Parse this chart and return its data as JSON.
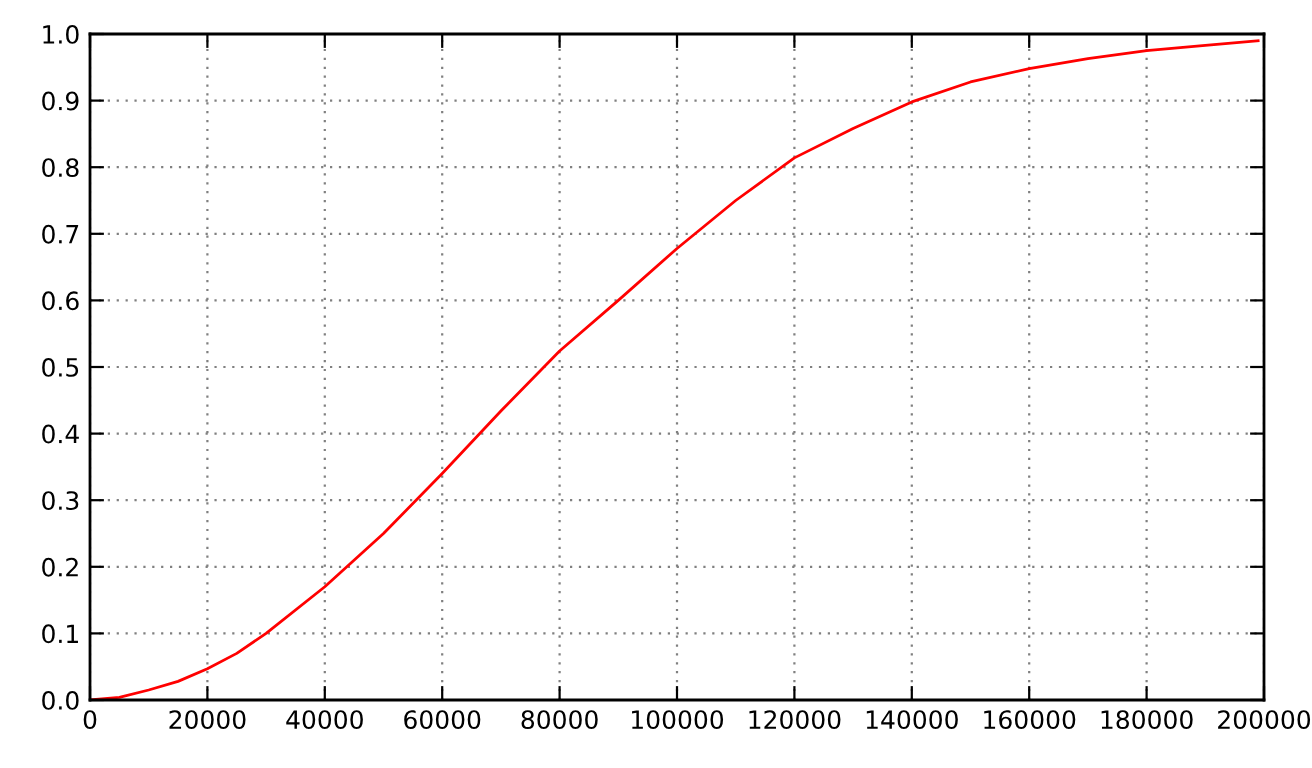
{
  "chart_data": {
    "type": "line",
    "x": [
      0,
      5000,
      10000,
      15000,
      20000,
      25000,
      30000,
      40000,
      50000,
      60000,
      70000,
      80000,
      90000,
      100000,
      110000,
      120000,
      130000,
      140000,
      150000,
      160000,
      170000,
      180000,
      190000,
      199000
    ],
    "series": [
      {
        "color": "#ff0000",
        "values": [
          0,
          0.004,
          0.015,
          0.028,
          0.047,
          0.07,
          0.1,
          0.17,
          0.25,
          0.34,
          0.434,
          0.524,
          0.6,
          0.678,
          0.75,
          0.814,
          0.858,
          0.898,
          0.928,
          0.948,
          0.963,
          0.975,
          0.983,
          0.99
        ]
      }
    ],
    "xlim": [
      0,
      200000
    ],
    "xticks": [
      0,
      20000,
      40000,
      60000,
      80000,
      100000,
      120000,
      140000,
      160000,
      180000,
      200000
    ],
    "ylim": [
      0,
      1.0
    ],
    "yticks": [
      {
        "value": 0,
        "label": "0.0"
      },
      0.1,
      0.2,
      0.3,
      0.4,
      0.5,
      0.6,
      0.7,
      0.8,
      0.9,
      {
        "value": 1.0,
        "label": "1.0"
      }
    ],
    "grid": true,
    "marker": "none",
    "line_style": "solid"
  }
}
